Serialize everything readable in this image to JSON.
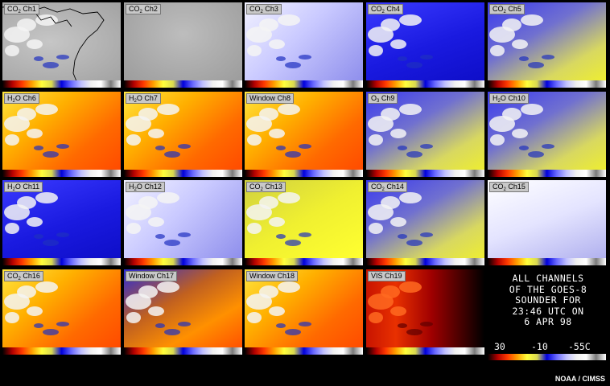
{
  "colors": {
    "colorbar_stops": [
      "#000000",
      "#b20000",
      "#ff3a00",
      "#ffa000",
      "#ffff3c",
      "#d8d850",
      "#0000dc",
      "#6a6aff",
      "#c0c0ff",
      "#f0f0f0",
      "#ffffff",
      "#7a7a7a",
      "#ffffff"
    ]
  },
  "panels": [
    {
      "prefix": "CO",
      "sub": "2",
      "suffix": " Ch1",
      "style": "gray-map"
    },
    {
      "prefix": "CO",
      "sub": "2",
      "suffix": " Ch2",
      "style": "gray"
    },
    {
      "prefix": "CO",
      "sub": "2",
      "suffix": " Ch3",
      "style": "pale-blue"
    },
    {
      "prefix": "CO",
      "sub": "2",
      "suffix": " Ch4",
      "style": "blue"
    },
    {
      "prefix": "CO",
      "sub": "2",
      "suffix": " Ch5",
      "style": "blue-yellow"
    },
    {
      "prefix": "H",
      "sub": "2",
      "suffix": "O Ch6",
      "style": "warm"
    },
    {
      "prefix": "H",
      "sub": "2",
      "suffix": "O Ch7",
      "style": "warm"
    },
    {
      "prefix": "Window Ch8",
      "sub": "",
      "suffix": "",
      "style": "warm"
    },
    {
      "prefix": "O",
      "sub": "3",
      "suffix": " Ch9",
      "style": "blue-yellow"
    },
    {
      "prefix": "H",
      "sub": "2",
      "suffix": "O Ch10",
      "style": "blue-yellow"
    },
    {
      "prefix": "H",
      "sub": "2",
      "suffix": "O Ch11",
      "style": "blue"
    },
    {
      "prefix": "H",
      "sub": "2",
      "suffix": "O Ch12",
      "style": "pale-blue"
    },
    {
      "prefix": "CO",
      "sub": "2",
      "suffix": " Ch13",
      "style": "yellow"
    },
    {
      "prefix": "CO",
      "sub": "2",
      "suffix": " Ch14",
      "style": "blue-yellow"
    },
    {
      "prefix": "CO",
      "sub": "2",
      "suffix": " Ch15",
      "style": "white-noise"
    },
    {
      "prefix": "CO",
      "sub": "2",
      "suffix": " Ch16",
      "style": "warm"
    },
    {
      "prefix": "Window Ch17",
      "sub": "",
      "suffix": "",
      "style": "warm-blue"
    },
    {
      "prefix": "Window Ch18",
      "sub": "",
      "suffix": "",
      "style": "warm"
    },
    {
      "prefix": "VIS Ch19",
      "sub": "",
      "suffix": "",
      "style": "vis"
    }
  ],
  "info": {
    "lines": [
      "ALL CHANNELS",
      "OF THE GOES-8",
      "SOUNDER FOR",
      "23:46 UTC ON",
      "6 APR 98"
    ],
    "scale": [
      "30",
      "-10",
      "-55C"
    ]
  },
  "credit": "NOAA / CIMSS"
}
